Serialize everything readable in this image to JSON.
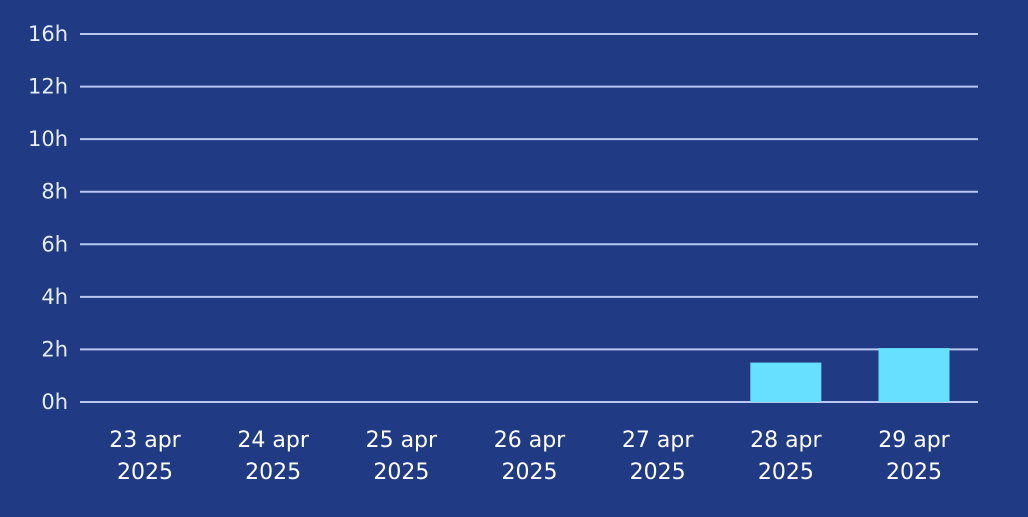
{
  "chart_data": {
    "type": "bar",
    "title": "",
    "xlabel": "",
    "ylabel": "",
    "categories": [
      [
        "23 apr",
        "2025"
      ],
      [
        "24 apr",
        "2025"
      ],
      [
        "25 apr",
        "2025"
      ],
      [
        "26 apr",
        "2025"
      ],
      [
        "27 apr",
        "2025"
      ],
      [
        "28 apr",
        "2025"
      ],
      [
        "29 apr",
        "2025"
      ]
    ],
    "y_ticks": [
      {
        "value": 0,
        "label": "0h"
      },
      {
        "value": 2,
        "label": "2h"
      },
      {
        "value": 4,
        "label": "4h"
      },
      {
        "value": 6,
        "label": "6h"
      },
      {
        "value": 8,
        "label": "8h"
      },
      {
        "value": 10,
        "label": "10h"
      },
      {
        "value": 12,
        "label": "12h"
      },
      {
        "value": 16,
        "label": "16h"
      }
    ],
    "values": [
      0,
      0,
      0,
      0,
      0,
      1.5,
      2.05
    ],
    "grid": true,
    "colors": {
      "background": "#203a84",
      "bar": "#67e0ff",
      "grid": "#b8c8f0",
      "tick_text": "#e6edff",
      "category_text": "#ffffff"
    }
  }
}
